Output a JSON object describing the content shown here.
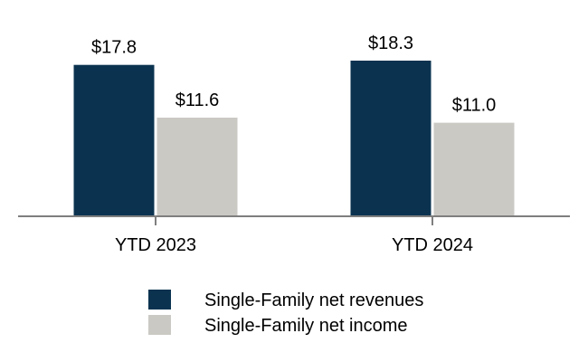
{
  "chart_data": {
    "type": "bar",
    "categories": [
      "YTD 2023",
      "YTD 2024"
    ],
    "series": [
      {
        "name": "Single-Family net revenues",
        "values": [
          17.8,
          18.3
        ],
        "labels": [
          "$17.8",
          "$18.3"
        ],
        "color": "#0b3350"
      },
      {
        "name": "Single-Family net income",
        "values": [
          11.6,
          11.0
        ],
        "labels": [
          "$11.6",
          "$11.0"
        ],
        "color": "#cbc9c4"
      }
    ],
    "ylim": [
      0,
      18.3
    ],
    "grid": false,
    "legend_position": "bottom",
    "axis_color": "#7f7f7f"
  }
}
